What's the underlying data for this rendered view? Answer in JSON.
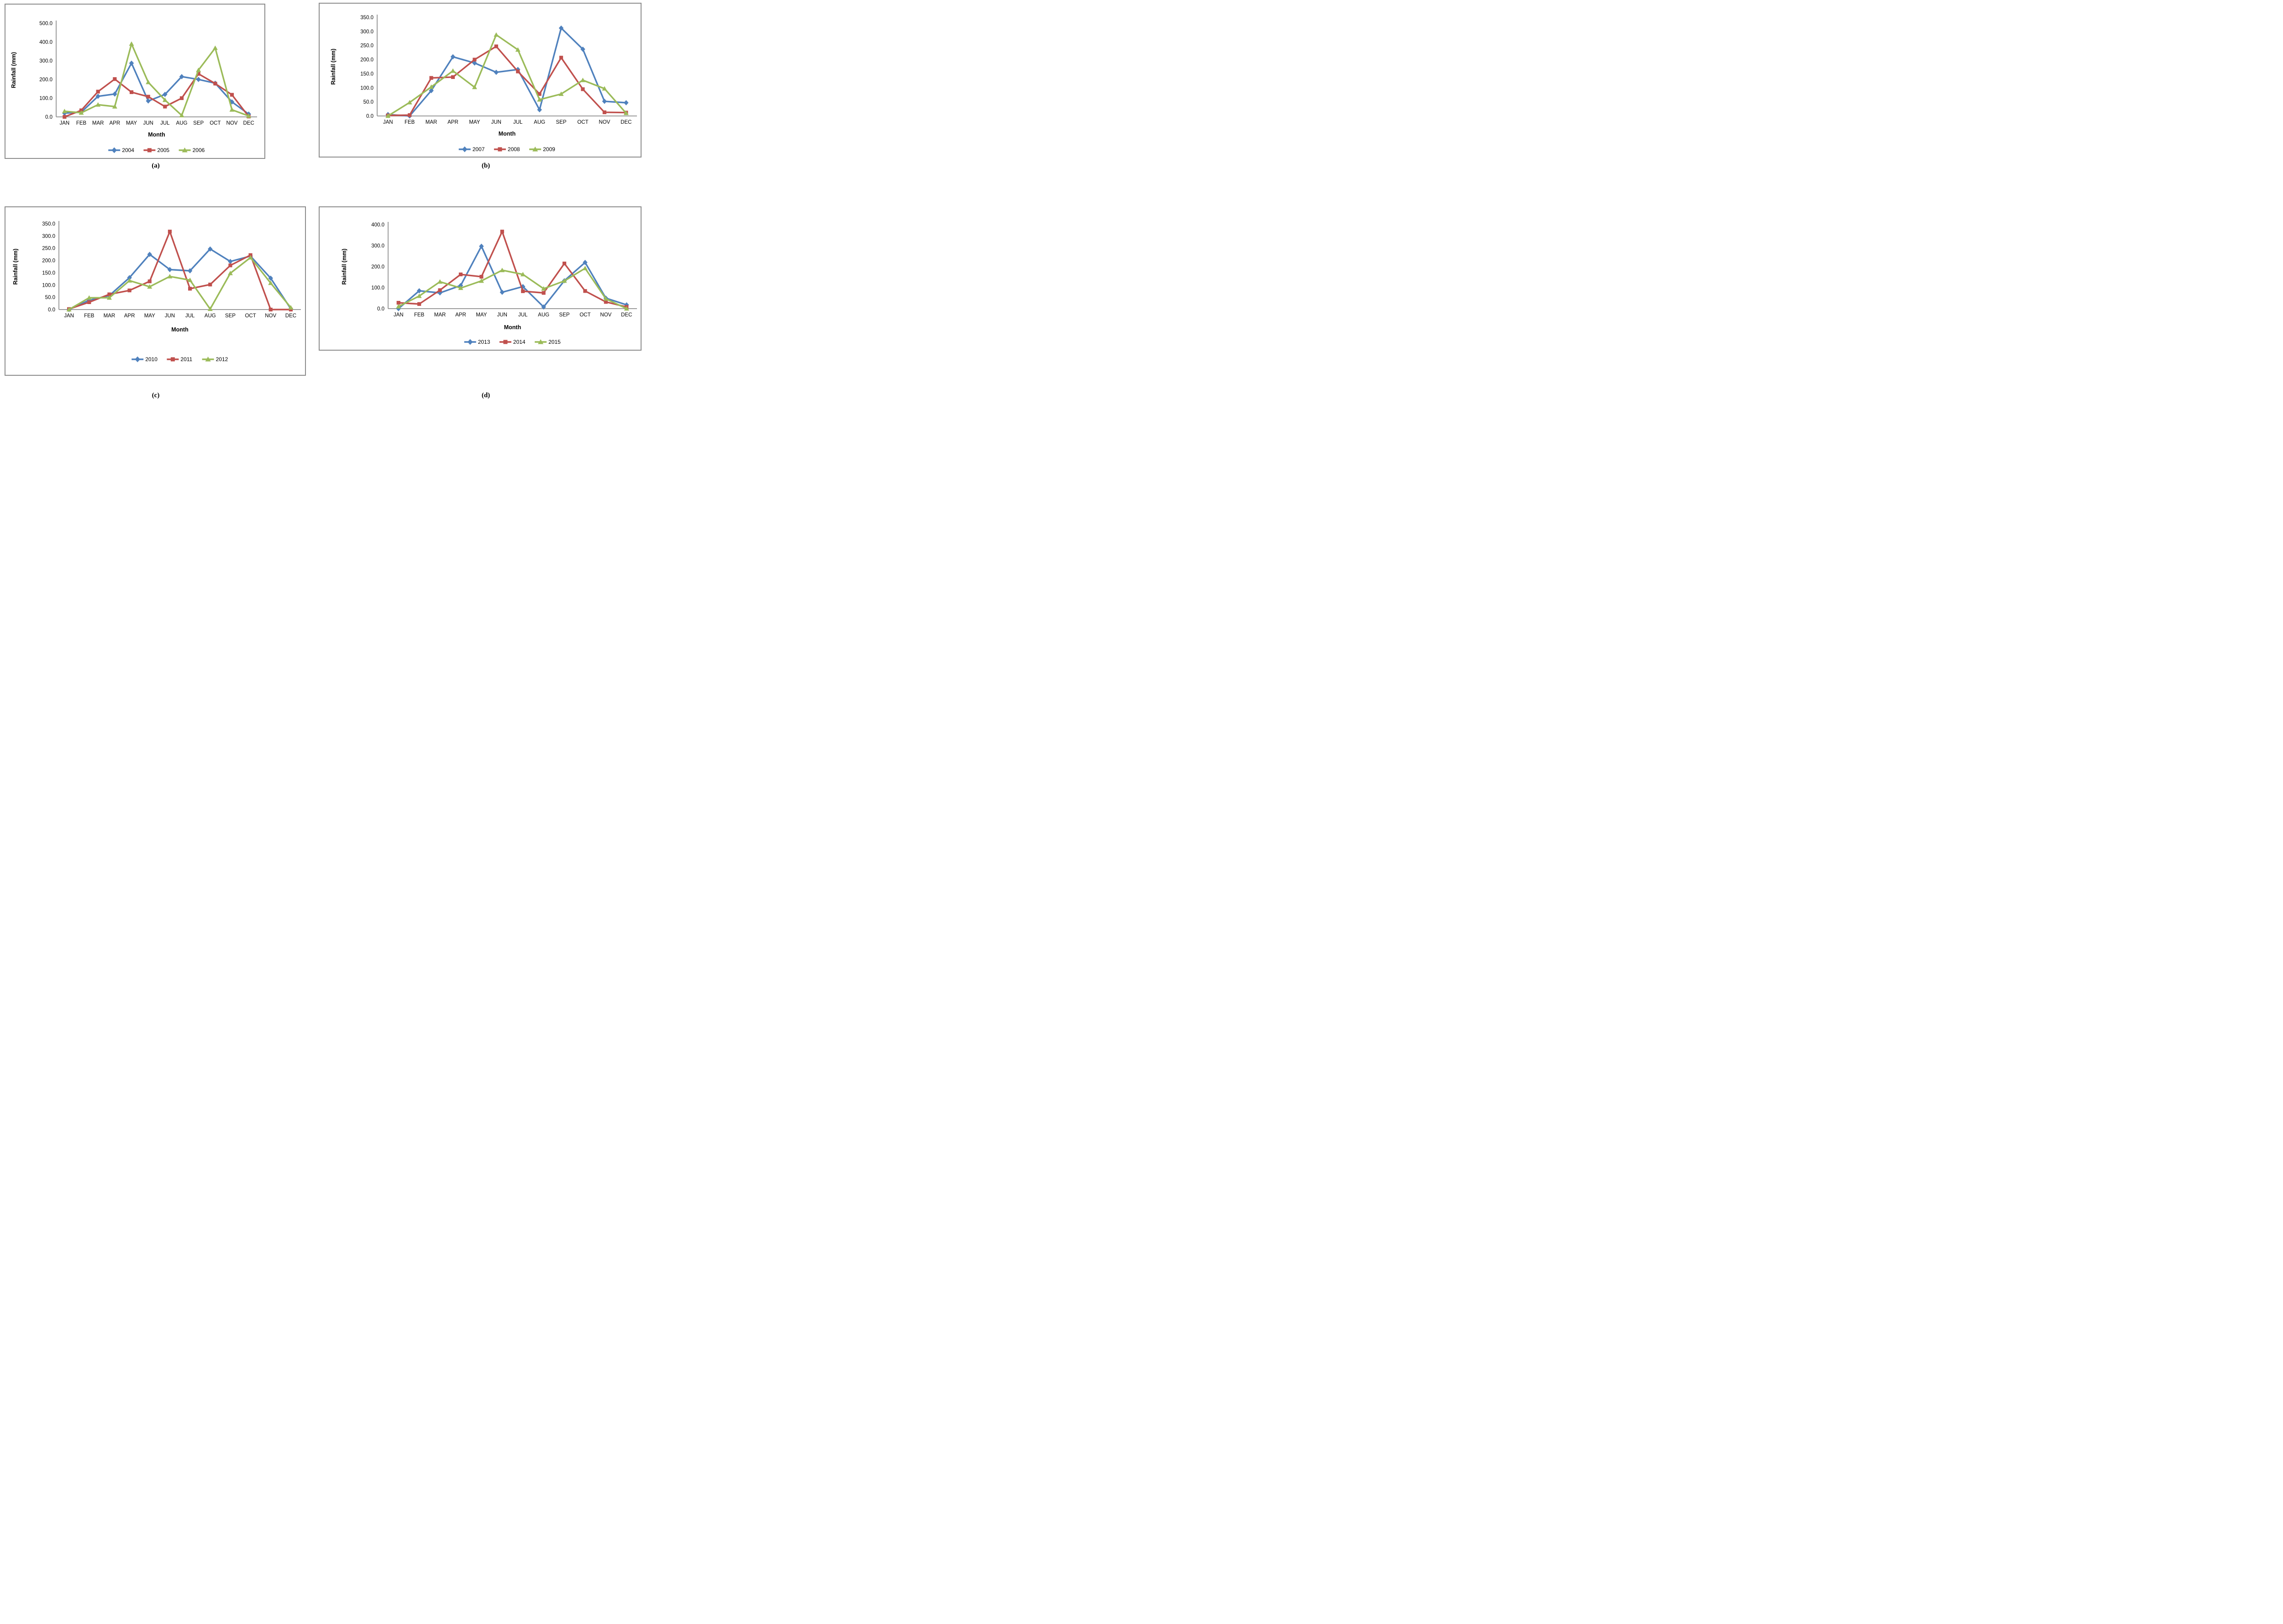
{
  "figure": {
    "ylabel": "Rainfall (mm)",
    "xlabel": "Month",
    "colors": {
      "series_blue": "#4F81BD",
      "series_red": "#C0504D",
      "series_green": "#9BBB59",
      "axis": "#9c9c9c",
      "panel_border": "#8c8c8c",
      "text": "#000000",
      "background": "#ffffff"
    }
  },
  "chart_data": [
    {
      "type": "line",
      "panel": "a",
      "caption": "(a)",
      "title": "",
      "xlabel": "Month",
      "ylabel": "Rainfall (mm)",
      "categories": [
        "JAN",
        "FEB",
        "MAR",
        "APR",
        "MAY",
        "JUN",
        "JUL",
        "AUG",
        "SEP",
        "OCT",
        "NOV",
        "DEC"
      ],
      "ylim": [
        0,
        500
      ],
      "ytick_step": 100,
      "yticks": [
        "0.0",
        "100.0",
        "200.0",
        "300.0",
        "400.0",
        "500.0"
      ],
      "grid": false,
      "legend_position": "bottom",
      "series": [
        {
          "name": "2004",
          "marker": "diamond",
          "color": "#4F81BD",
          "values": [
            20,
            25,
            110,
            122,
            287,
            85,
            120,
            215,
            200,
            180,
            80,
            15
          ]
        },
        {
          "name": "2005",
          "marker": "square",
          "color": "#C0504D",
          "values": [
            0,
            35,
            135,
            202,
            132,
            108,
            55,
            100,
            230,
            178,
            118,
            2
          ]
        },
        {
          "name": "2006",
          "marker": "triangle",
          "color": "#9BBB59",
          "values": [
            30,
            22,
            65,
            55,
            390,
            185,
            90,
            8,
            250,
            368,
            38,
            5
          ]
        }
      ]
    },
    {
      "type": "line",
      "panel": "b",
      "caption": "(b)",
      "title": "",
      "xlabel": "Month",
      "ylabel": "Rainfall (mm)",
      "categories": [
        "JAN",
        "FEB",
        "MAR",
        "APR",
        "MAY",
        "JUN",
        "JUL",
        "AUG",
        "SEP",
        "OCT",
        "NOV",
        "DEC"
      ],
      "ylim": [
        0,
        350
      ],
      "ytick_step": 50,
      "yticks": [
        "0.0",
        "50.0",
        "100.0",
        "150.0",
        "200.0",
        "250.0",
        "300.0",
        "350.0"
      ],
      "grid": false,
      "legend_position": "bottom",
      "series": [
        {
          "name": "2007",
          "marker": "diamond",
          "color": "#4F81BD",
          "values": [
            5,
            0,
            90,
            210,
            188,
            155,
            165,
            22,
            312,
            237,
            52,
            47
          ]
        },
        {
          "name": "2008",
          "marker": "square",
          "color": "#C0504D",
          "values": [
            2,
            3,
            135,
            138,
            200,
            247,
            158,
            78,
            207,
            95,
            13,
            12
          ]
        },
        {
          "name": "2009",
          "marker": "triangle",
          "color": "#9BBB59",
          "values": [
            0,
            48,
            103,
            160,
            102,
            288,
            235,
            58,
            78,
            127,
            97,
            10
          ]
        }
      ]
    },
    {
      "type": "line",
      "panel": "c",
      "caption": "(c)",
      "title": "",
      "xlabel": "Month",
      "ylabel": "Rainfall (mm)",
      "categories": [
        "JAN",
        "FEB",
        "MAR",
        "APR",
        "MAY",
        "JUN",
        "JUL",
        "AUG",
        "SEP",
        "OCT",
        "NOV",
        "DEC"
      ],
      "ylim": [
        0,
        350
      ],
      "ytick_step": 50,
      "yticks": [
        "0.0",
        "50.0",
        "100.0",
        "150.0",
        "200.0",
        "250.0",
        "300.0",
        "350.0"
      ],
      "grid": false,
      "legend_position": "bottom",
      "series": [
        {
          "name": "2010",
          "marker": "diamond",
          "color": "#4F81BD",
          "values": [
            0,
            38,
            57,
            130,
            225,
            163,
            158,
            247,
            196,
            218,
            128,
            3
          ]
        },
        {
          "name": "2011",
          "marker": "square",
          "color": "#C0504D",
          "values": [
            2,
            30,
            62,
            78,
            115,
            318,
            85,
            102,
            180,
            222,
            0,
            0
          ]
        },
        {
          "name": "2012",
          "marker": "triangle",
          "color": "#9BBB59",
          "values": [
            0,
            48,
            48,
            118,
            93,
            135,
            120,
            2,
            148,
            212,
            108,
            8
          ]
        }
      ]
    },
    {
      "type": "line",
      "panel": "d",
      "caption": "(d)",
      "title": "",
      "xlabel": "Month",
      "ylabel": "Rainfall (mm)",
      "categories": [
        "JAN",
        "FEB",
        "MAR",
        "APR",
        "MAY",
        "JUN",
        "JUL",
        "AUG",
        "SEP",
        "OCT",
        "NOV",
        "DEC"
      ],
      "ylim": [
        0,
        400
      ],
      "ytick_step": 100,
      "yticks": [
        "0.0",
        "100.0",
        "200.0",
        "300.0",
        "400.0"
      ],
      "grid": false,
      "legend_position": "bottom",
      "series": [
        {
          "name": "2013",
          "marker": "diamond",
          "color": "#4F81BD",
          "values": [
            0,
            85,
            75,
            110,
            297,
            78,
            105,
            8,
            133,
            220,
            50,
            18
          ]
        },
        {
          "name": "2014",
          "marker": "square",
          "color": "#C0504D",
          "values": [
            28,
            22,
            88,
            163,
            152,
            367,
            83,
            75,
            215,
            84,
            32,
            8
          ]
        },
        {
          "name": "2015",
          "marker": "triangle",
          "color": "#9BBB59",
          "values": [
            10,
            60,
            128,
            98,
            132,
            183,
            163,
            95,
            132,
            192,
            47,
            0
          ]
        }
      ]
    }
  ]
}
